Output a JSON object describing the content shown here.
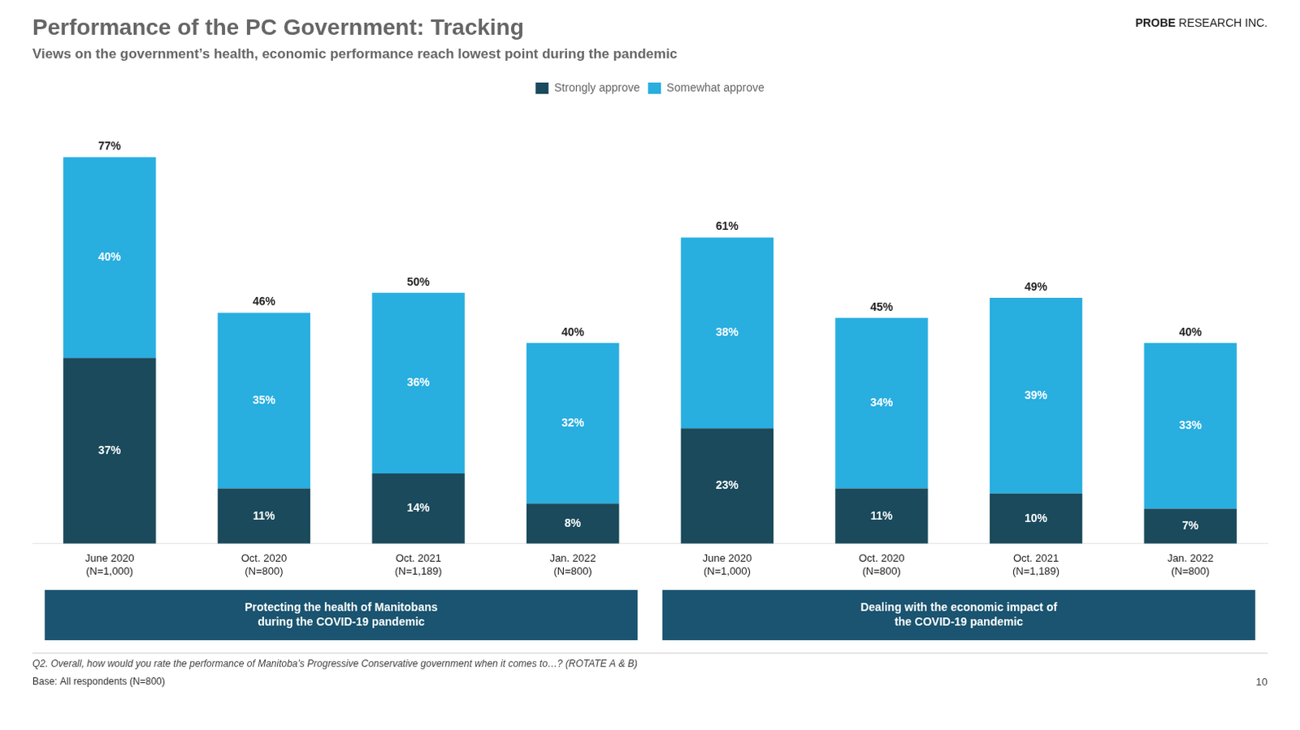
{
  "chart_data": {
    "type": "bar",
    "title": "Performance of the PC Government: Tracking",
    "subtitle": "Views on the government’s health, economic performance reach lowest point during the pandemic",
    "categories": [
      "June 2020\n(N=1,000)",
      "Oct. 2020\n(N=800)",
      "Oct. 2021\n(N=1,189)",
      "Jan. 2022\n(N=800)",
      "June 2020\n(N=1,000)",
      "Oct. 2020\n(N=800)",
      "Oct. 2021\n(N=1,189)",
      "Jan. 2022\n(N=800)"
    ],
    "groups": [
      {
        "label": "Protecting the health of Manitobans\nduring the COVID-19 pandemic",
        "categories": [
          "June 2020\n(N=1,000)",
          "Oct. 2020\n(N=800)",
          "Oct. 2021\n(N=1,189)",
          "Jan. 2022\n(N=800)"
        ]
      },
      {
        "label": "Dealing with the economic impact of\nthe COVID-19 pandemic",
        "categories": [
          "June 2020\n(N=1,000)",
          "Oct. 2020\n(N=800)",
          "Oct. 2021\n(N=1,189)",
          "Jan. 2022\n(N=800)"
        ]
      }
    ],
    "series": [
      {
        "name": "Strongly approve",
        "color": "#1a4a5c",
        "values": [
          37,
          11,
          14,
          8,
          23,
          11,
          10,
          7
        ],
        "value_labels": [
          "37%",
          "11%",
          "14%",
          "8%",
          "23%",
          "11%",
          "10%",
          "7%"
        ]
      },
      {
        "name": "Somewhat approve",
        "color": "#29aee0",
        "values": [
          40,
          35,
          36,
          32,
          38,
          34,
          39,
          33
        ],
        "value_labels": [
          "40%",
          "35%",
          "36%",
          "32%",
          "38%",
          "34%",
          "39%",
          "33%"
        ]
      }
    ],
    "totals": [
      77,
      46,
      50,
      40,
      61,
      45,
      49,
      40
    ],
    "total_labels": [
      "77%",
      "46%",
      "50%",
      "40%",
      "61%",
      "45%",
      "49%",
      "40%"
    ],
    "ylim": [
      0,
      88
    ],
    "stacked": true,
    "data_labels": true,
    "grid": false,
    "legend": "top",
    "tick_labels": "x",
    "logo": "PROBE RESEARCH INC.",
    "footnotes": [
      "Q2. Overall, how would you rate the performance of Manitoba’s Progressive Conservative government when it comes to…? (ROTATE A & B)",
      "Base: All respondents (N=800)"
    ],
    "page_number": "10"
  }
}
